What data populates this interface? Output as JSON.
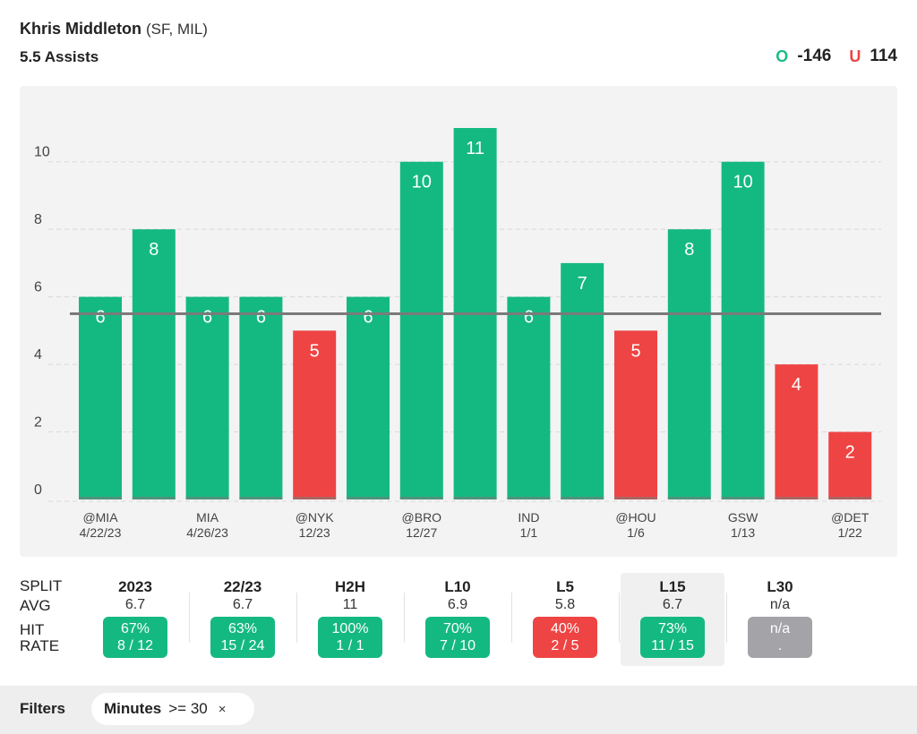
{
  "header": {
    "player": "Khris Middleton",
    "team": "(SF, MIL)",
    "prop": "5.5 Assists",
    "over_tag": "O",
    "over_odds": "-146",
    "under_tag": "U",
    "under_odds": "114"
  },
  "colors": {
    "hit": "#14b981",
    "miss": "#ef4444",
    "line": "#7a7a7a",
    "neutral": "#a3a3a8"
  },
  "chart_data": {
    "type": "bar",
    "title": "",
    "xlabel": "",
    "ylabel": "",
    "ylim": [
      0,
      11
    ],
    "yticks": [
      0,
      2,
      4,
      6,
      8,
      10
    ],
    "threshold": 5.5,
    "grid": true,
    "values": [
      6,
      8,
      6,
      6,
      5,
      6,
      10,
      11,
      6,
      7,
      5,
      8,
      10,
      4,
      2
    ],
    "categories": [
      {
        "opp": "@MIA",
        "date": "4/22/23"
      },
      {
        "opp": "",
        "date": ""
      },
      {
        "opp": "MIA",
        "date": "4/26/23"
      },
      {
        "opp": "",
        "date": ""
      },
      {
        "opp": "@NYK",
        "date": "12/23"
      },
      {
        "opp": "",
        "date": ""
      },
      {
        "opp": "@BRO",
        "date": "12/27"
      },
      {
        "opp": "",
        "date": ""
      },
      {
        "opp": "IND",
        "date": "1/1"
      },
      {
        "opp": "",
        "date": ""
      },
      {
        "opp": "@HOU",
        "date": "1/6"
      },
      {
        "opp": "",
        "date": ""
      },
      {
        "opp": "GSW",
        "date": "1/13"
      },
      {
        "opp": "",
        "date": ""
      },
      {
        "opp": "@DET",
        "date": "1/22"
      }
    ]
  },
  "splits": {
    "row_labels": {
      "split": "SPLIT",
      "avg": "AVG",
      "hit1": "HIT",
      "hit2": "RATE"
    },
    "columns": [
      {
        "name": "2023",
        "avg": "6.7",
        "pct": "67%",
        "frac": "8 / 12",
        "status": "green",
        "active": false
      },
      {
        "name": "22/23",
        "avg": "6.7",
        "pct": "63%",
        "frac": "15 / 24",
        "status": "green",
        "active": false
      },
      {
        "name": "H2H",
        "avg": "11",
        "pct": "100%",
        "frac": "1 / 1",
        "status": "green",
        "active": false
      },
      {
        "name": "L10",
        "avg": "6.9",
        "pct": "70%",
        "frac": "7 / 10",
        "status": "green",
        "active": false
      },
      {
        "name": "L5",
        "avg": "5.8",
        "pct": "40%",
        "frac": "2 / 5",
        "status": "red",
        "active": false
      },
      {
        "name": "L15",
        "avg": "6.7",
        "pct": "73%",
        "frac": "11 / 15",
        "status": "green",
        "active": true
      },
      {
        "name": "L30",
        "avg": "n/a",
        "pct": "n/a",
        "frac": ".",
        "status": "gray",
        "active": false
      }
    ]
  },
  "filters": {
    "label": "Filters",
    "chip_name": "Minutes",
    "chip_value": ">= 30",
    "chip_close": "×"
  }
}
